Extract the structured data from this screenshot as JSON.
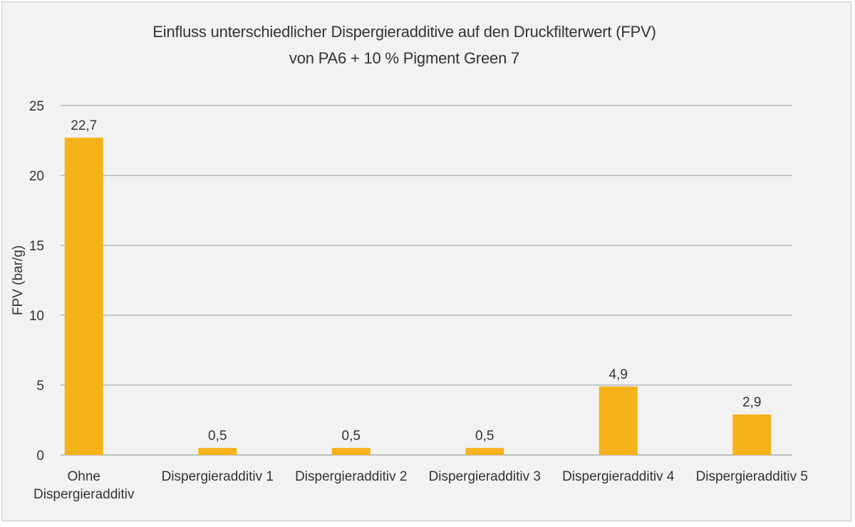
{
  "chart_data": {
    "type": "bar",
    "title": "Einfluss unterschiedlicher Dispergieradditive auf den Druckfilterwert (FPV)",
    "subtitle": "von PA6 + 10 % Pigment Green 7",
    "xlabel": "",
    "ylabel": "FPV (bar/g)",
    "ylim": [
      0,
      25
    ],
    "yticks": [
      "0",
      "5",
      "10",
      "15",
      "20",
      "25"
    ],
    "grid": true,
    "categories": [
      [
        "Ohne",
        "Dispergieradditiv"
      ],
      [
        "Dispergieradditiv 1"
      ],
      [
        "Dispergieradditiv 2"
      ],
      [
        "Dispergieradditiv 3"
      ],
      [
        "Dispergieradditiv 4"
      ],
      [
        "Dispergieradditiv 5"
      ]
    ],
    "values": [
      22.7,
      0.5,
      0.5,
      0.5,
      4.9,
      2.9
    ],
    "value_labels": [
      "22,7",
      "0,5",
      "0,5",
      "0,5",
      "4,9",
      "2,9"
    ],
    "bar_color": "#f5b21a",
    "grid_color": "#9a9a9a"
  }
}
